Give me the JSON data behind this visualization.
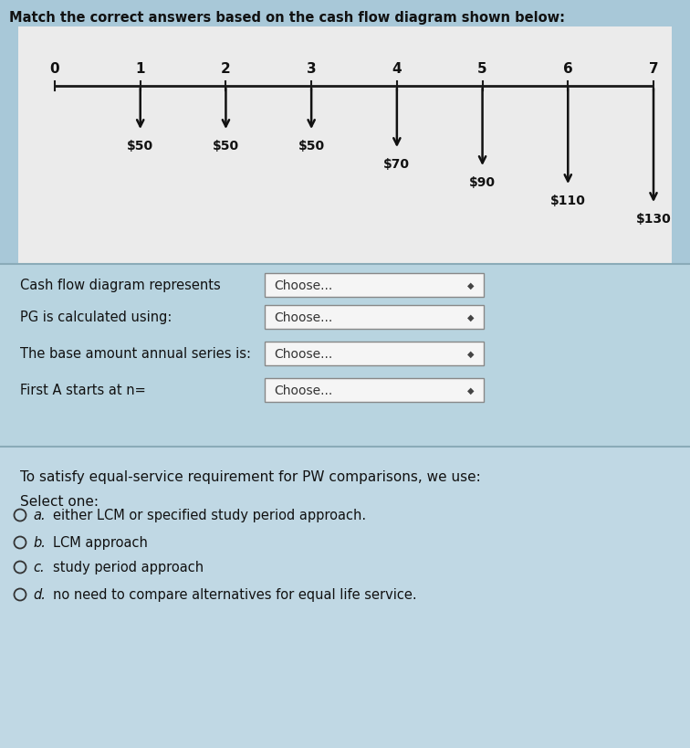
{
  "title": "Match the correct answers based on the cash flow diagram shown below:",
  "title_fontsize": 10.5,
  "bg_outer": "#a8c8d8",
  "bg_diagram": "#ebebeb",
  "bg_match": "#b8d4e0",
  "bg_pw": "#c0d8e4",
  "periods": [
    0,
    1,
    2,
    3,
    4,
    5,
    6,
    7
  ],
  "cashflows": [
    0,
    50,
    50,
    50,
    70,
    90,
    110,
    130
  ],
  "cashflow_labels": [
    "",
    "$50",
    "$50",
    "$50",
    "$70",
    "$90",
    "$110",
    "$130"
  ],
  "match_questions": [
    "Cash flow diagram represents",
    "PG is calculated using:",
    "The base amount annual series is:",
    "First A starts at n="
  ],
  "match_answers": [
    "Choose...",
    "Choose...",
    "Choose...",
    "Choose..."
  ],
  "pw_question": "To satisfy equal-service requirement for PW comparisons, we use:",
  "select_one_label": "Select one:",
  "options": [
    "either LCM or specified study period approach.",
    "LCM approach",
    "study period approach",
    "no need to compare alternatives for equal life service."
  ],
  "option_letters": [
    "a.",
    "b.",
    "c.",
    "d."
  ]
}
